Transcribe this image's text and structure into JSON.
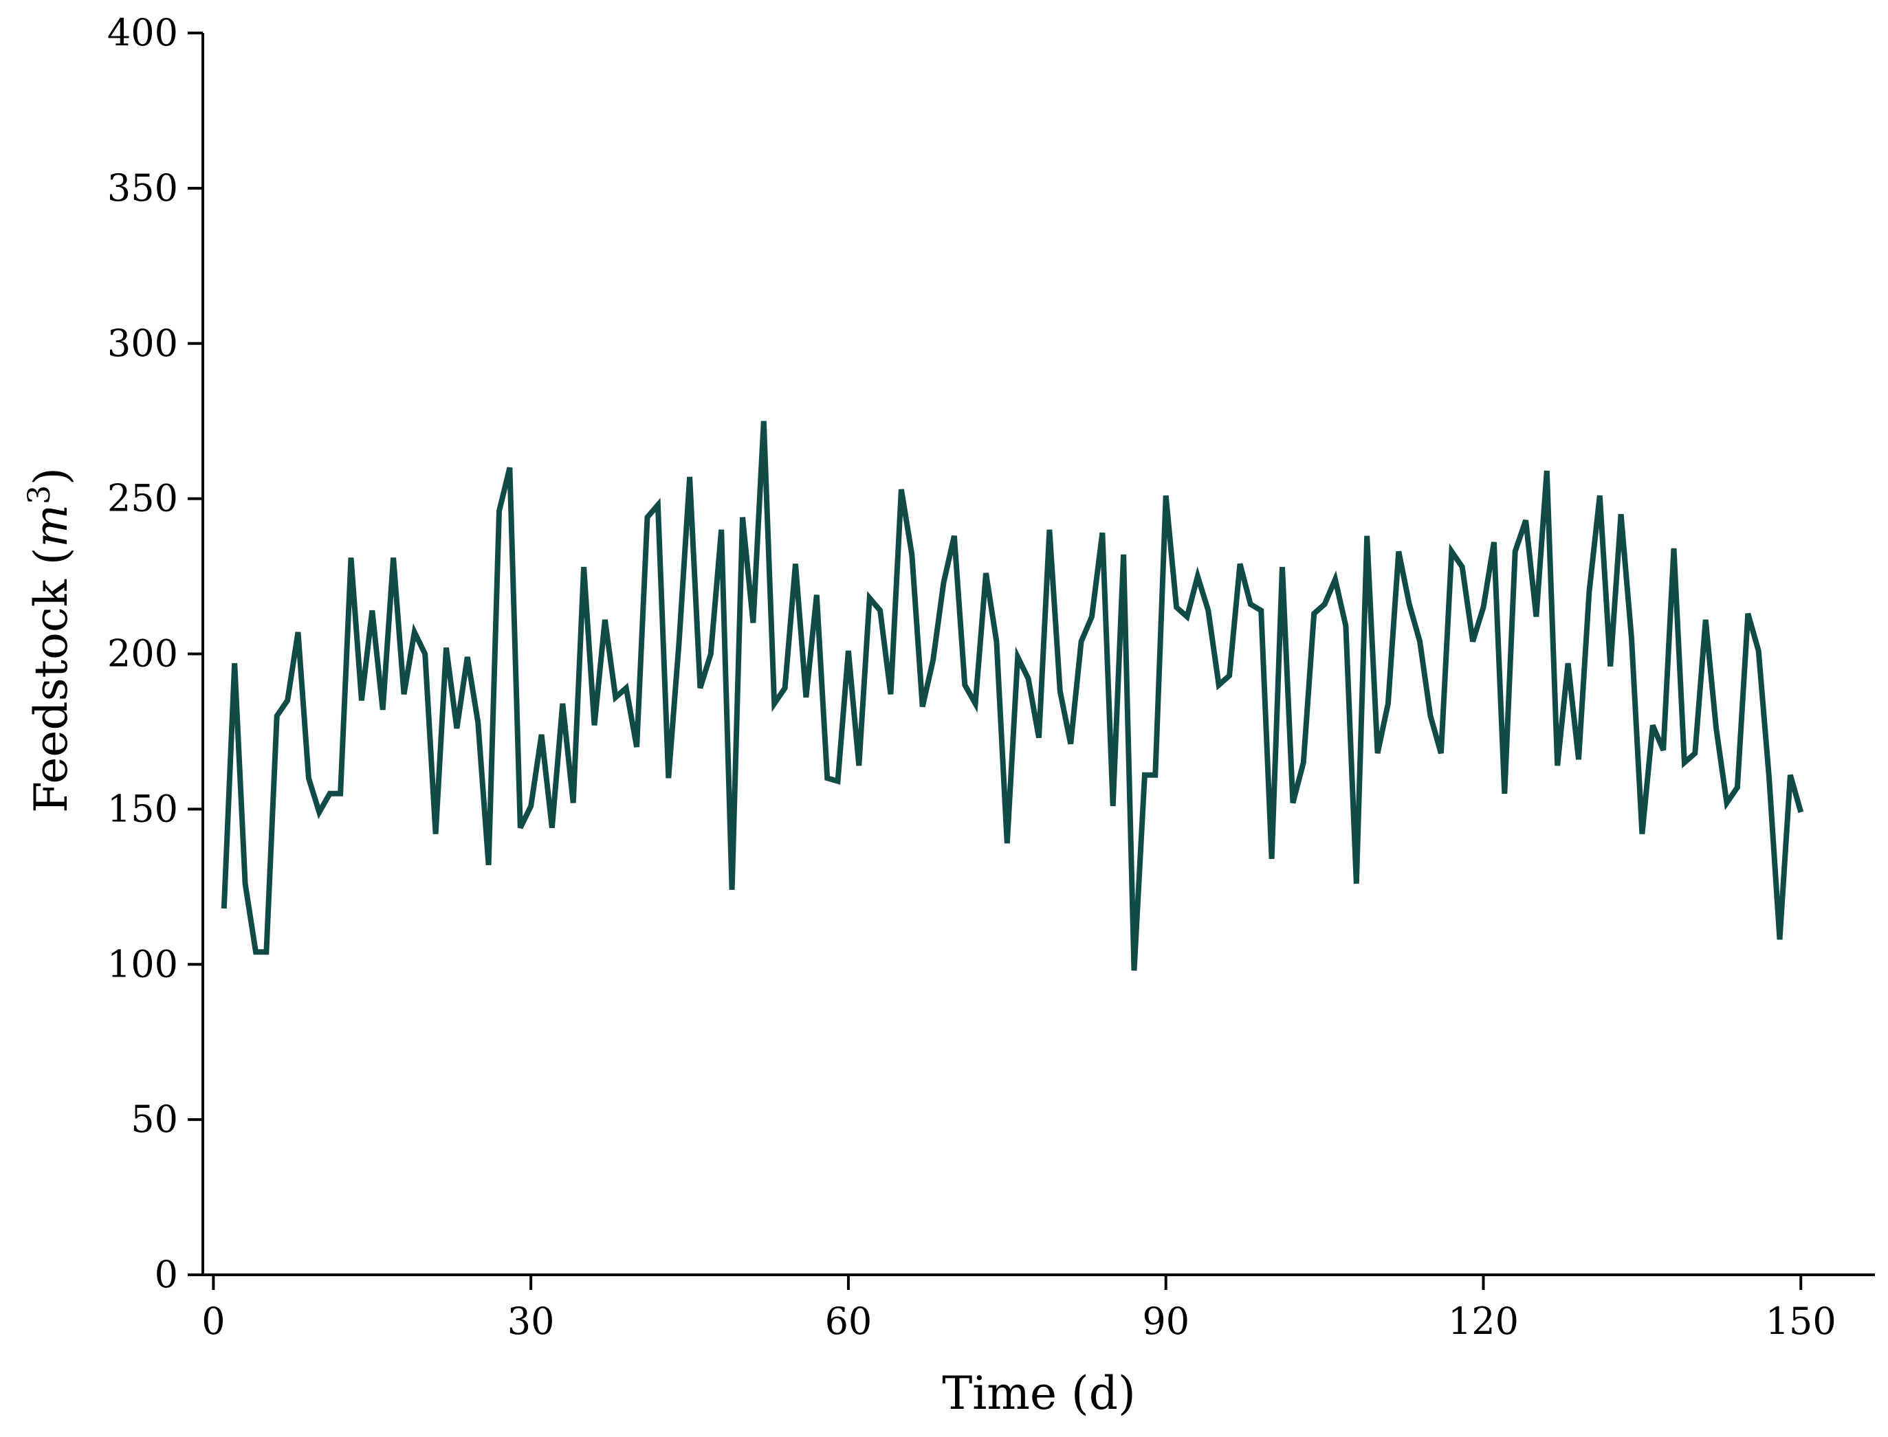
{
  "chart_data": {
    "type": "line",
    "title": "",
    "xlabel": "Time (d)",
    "ylabel_text": "Feedstock (",
    "ylabel_unit_base": "m",
    "ylabel_unit_exp": "3",
    "ylabel_close": ")",
    "xlim": [
      -1,
      157
    ],
    "ylim": [
      0,
      400
    ],
    "xticks": [
      0,
      30,
      60,
      90,
      120,
      150
    ],
    "yticks": [
      0,
      50,
      100,
      150,
      200,
      250,
      300,
      350,
      400
    ],
    "grid": false,
    "legend": "none",
    "color": "#114b47",
    "series": [
      {
        "x": [
          1,
          2,
          3,
          4,
          5,
          6,
          7,
          8,
          9,
          10,
          11,
          12,
          13,
          14,
          15,
          16,
          17,
          18,
          19,
          20,
          21,
          22,
          23,
          24,
          25,
          26,
          27,
          28,
          29,
          30,
          31,
          32,
          33,
          34,
          35,
          36,
          37,
          38,
          39,
          40,
          41,
          42,
          43,
          44,
          45,
          46,
          47,
          48,
          49,
          50,
          51,
          52,
          53,
          54,
          55,
          56,
          57,
          58,
          59,
          60,
          61,
          62,
          63,
          64,
          65,
          66,
          67,
          68,
          69,
          70,
          71,
          72,
          73,
          74,
          75,
          76,
          77,
          78,
          79,
          80,
          81,
          82,
          83,
          84,
          85,
          86,
          87,
          88,
          89,
          90,
          91,
          92,
          93,
          94,
          95,
          96,
          97,
          98,
          99,
          100,
          101,
          102,
          103,
          104,
          105,
          106,
          107,
          108,
          109,
          110,
          111,
          112,
          113,
          114,
          115,
          116,
          117,
          118,
          119,
          120,
          121,
          122,
          123,
          124,
          125,
          126,
          127,
          128,
          129,
          130,
          131,
          132,
          133,
          134,
          135,
          136,
          137,
          138,
          139,
          140,
          141,
          142,
          143,
          144,
          145,
          146,
          147,
          148,
          149,
          150
        ],
        "values": [
          118,
          197,
          126,
          104,
          104,
          180,
          185,
          207,
          160,
          149,
          155,
          155,
          231,
          185,
          214,
          182,
          231,
          187,
          207,
          200,
          142,
          202,
          176,
          199,
          178,
          132,
          246,
          260,
          144,
          151,
          174,
          144,
          184,
          152,
          228,
          177,
          211,
          186,
          189,
          170,
          244,
          248,
          160,
          204,
          257,
          189,
          200,
          240,
          124,
          244,
          210,
          275,
          184,
          189,
          229,
          186,
          219,
          160,
          159,
          201,
          164,
          218,
          214,
          187,
          253,
          232,
          183,
          198,
          223,
          238,
          190,
          184,
          226,
          204,
          139,
          199,
          192,
          173,
          240,
          188,
          171,
          204,
          212,
          239,
          151,
          232,
          98,
          161,
          161,
          251,
          215,
          212,
          225,
          214,
          190,
          193,
          229,
          216,
          214,
          134,
          228,
          152,
          165,
          213,
          216,
          224,
          209,
          126,
          238,
          168,
          184,
          233,
          216,
          204,
          180,
          168,
          233,
          228,
          204,
          215,
          236,
          155,
          233,
          243,
          212,
          259,
          164,
          197,
          166,
          220,
          251,
          196,
          245,
          205,
          142,
          177,
          169,
          234,
          165,
          168,
          211,
          176,
          152,
          157,
          213,
          201,
          160,
          108,
          161,
          149
        ]
      }
    ]
  }
}
